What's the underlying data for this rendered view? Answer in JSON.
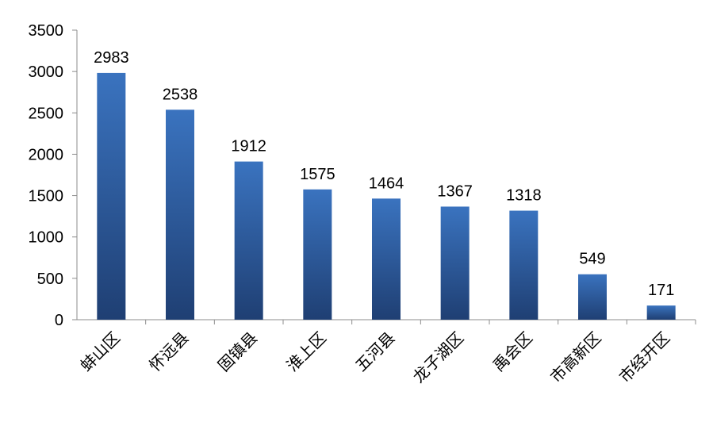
{
  "chart_data": {
    "type": "bar",
    "title": "",
    "xlabel": "",
    "ylabel": "",
    "categories": [
      "蚌山区",
      "怀远县",
      "固镇县",
      "淮上区",
      "五河县",
      "龙子湖区",
      "禹会区",
      "市高新区",
      "市经开区"
    ],
    "values": [
      2983,
      2538,
      1912,
      1575,
      1464,
      1367,
      1318,
      549,
      171
    ],
    "data_labels": [
      "2983",
      "2538",
      "1912",
      "1575",
      "1464",
      "1367",
      "1318",
      "549",
      "171"
    ],
    "ylim": [
      0,
      3500
    ],
    "yticks": [
      0,
      500,
      1000,
      1500,
      2000,
      2500,
      3000,
      3500
    ],
    "ytick_labels": [
      "0",
      "500",
      "1000",
      "1500",
      "2000",
      "2500",
      "3000",
      "3500"
    ],
    "grid": false,
    "legend": "none",
    "colors": {
      "bar_top": "#3a73bf",
      "bar_bottom": "#1f3f73",
      "axis": "#8c8c8c",
      "text": "#000000"
    }
  }
}
